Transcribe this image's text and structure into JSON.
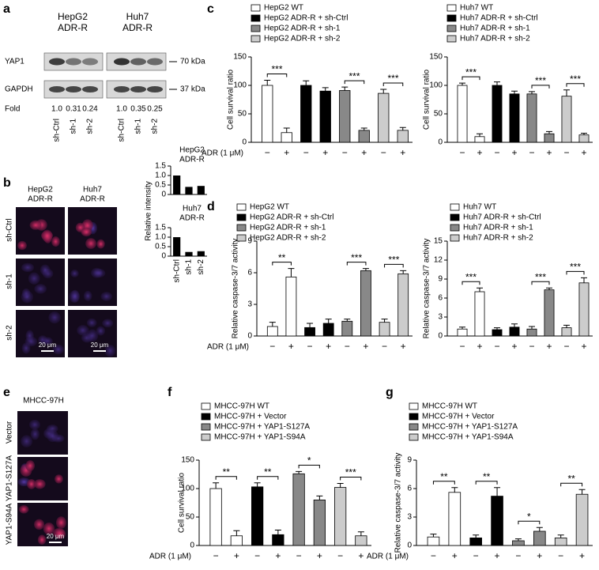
{
  "panel_labels": [
    "a",
    "b",
    "c",
    "d",
    "e",
    "f",
    "g"
  ],
  "panel_a": {
    "cell_lines": [
      [
        "HepG2",
        "ADR-R"
      ],
      [
        "Huh7",
        "ADR-R"
      ]
    ],
    "proteins": [
      "YAP1",
      "GAPDH"
    ],
    "markers": [
      "70 kDa",
      "37 kDa"
    ],
    "fold_label": "Fold",
    "fold": [
      "1.0",
      "0.31",
      "0.24",
      "1.0",
      "0.35",
      "0.25"
    ],
    "lanes": [
      "sh-Ctrl",
      "sh-1",
      "sh-2",
      "sh-Ctrl",
      "sh-1",
      "sh-2"
    ]
  },
  "panel_b": {
    "columns": [
      [
        "HepG2",
        "ADR-R"
      ],
      [
        "Huh7",
        "ADR-R"
      ]
    ],
    "rows": [
      "sh-Ctrl",
      "sh-1",
      "sh-2"
    ],
    "scale_bars": [
      "20 μm",
      "20 μm"
    ],
    "ylabel": "Relative intensity"
  },
  "panel_e": {
    "title": "MHCC-97H",
    "rows": [
      "Vector",
      "YAP1-S127A",
      "YAP1-S94A"
    ],
    "scale_bar": "20 μm"
  },
  "chart_data": [
    {
      "type": "bar",
      "title_lines": [
        "HepG2",
        "ADR-R"
      ],
      "categories": [
        null,
        null,
        null
      ],
      "values": [
        1.0,
        0.4,
        0.45
      ],
      "color": "#000000",
      "ylim": [
        0,
        1.5
      ],
      "yticks": [
        0,
        0.5,
        {
          "value": 1,
          "label": "1.0"
        },
        1.5
      ]
    },
    {
      "type": "bar",
      "title_lines": [
        "Huh7",
        "ADR-R"
      ],
      "categories": [
        "sh-Ctrl",
        "sh-1",
        "sh-2"
      ],
      "values": [
        1.0,
        0.22,
        0.26
      ],
      "color": "#000000",
      "ylim": [
        0,
        1.5
      ],
      "yticks": [
        0,
        0.5,
        {
          "value": 1,
          "label": "1.0"
        },
        1.5
      ]
    },
    {
      "type": "bar",
      "ylabel": "Cell survival ratio",
      "xlabel": "ADR (1 μM)",
      "categories": [
        "−",
        "+"
      ],
      "ylim": [
        0,
        150
      ],
      "yticks": [
        0,
        50,
        100,
        150
      ],
      "series": [
        {
          "name": "HepG2 WT",
          "color": "#ffffff",
          "values": [
            100,
            17
          ],
          "errors": [
            9,
            8
          ],
          "significance": "***"
        },
        {
          "name": "HepG2 ADR-R + sh-Ctrl",
          "color": "#000000",
          "values": [
            100,
            90
          ],
          "errors": [
            8,
            6
          ]
        },
        {
          "name": "HepG2 ADR-R + sh-1",
          "color": "#888888",
          "values": [
            91,
            21
          ],
          "errors": [
            6,
            4
          ],
          "significance": "***"
        },
        {
          "name": "HepG2 ADR-R + sh-2",
          "color": "#cccccc",
          "values": [
            86,
            21
          ],
          "errors": [
            7,
            5
          ],
          "significance": "***"
        }
      ]
    },
    {
      "type": "bar",
      "ylabel": "Cell survival ratio",
      "categories": [
        "−",
        "+"
      ],
      "ylim": [
        0,
        150
      ],
      "yticks": [
        0,
        50,
        100,
        150
      ],
      "series": [
        {
          "name": "Huh7 WT",
          "color": "#ffffff",
          "values": [
            100,
            10
          ],
          "errors": [
            4,
            5
          ],
          "significance": "***"
        },
        {
          "name": "Huh7 ADR-R + sh-Ctrl",
          "color": "#000000",
          "values": [
            100,
            85
          ],
          "errors": [
            6,
            5
          ]
        },
        {
          "name": "Huh7 ADR-R + sh-1",
          "color": "#888888",
          "values": [
            85,
            15
          ],
          "errors": [
            4,
            4
          ],
          "significance": "***"
        },
        {
          "name": "Huh7 ADR-R + sh-2",
          "color": "#cccccc",
          "values": [
            81,
            13
          ],
          "errors": [
            11,
            3
          ],
          "significance": "***"
        }
      ]
    },
    {
      "type": "bar",
      "ylabel": "Relative caspase-3/7 activity",
      "xlabel": "ADR (1 μM)",
      "categories": [
        "−",
        "+"
      ],
      "ylim": [
        0,
        9
      ],
      "yticks": [
        0,
        3,
        6,
        9
      ],
      "series": [
        {
          "name": "HepG2 WT",
          "color": "#ffffff",
          "values": [
            0.9,
            5.6
          ],
          "errors": [
            0.4,
            0.8
          ],
          "significance": "**"
        },
        {
          "name": "HepG2 ADR-R + sh-Ctrl",
          "color": "#000000",
          "values": [
            0.8,
            1.2
          ],
          "errors": [
            0.4,
            0.4
          ]
        },
        {
          "name": "HepG2 ADR-R + sh-1",
          "color": "#888888",
          "values": [
            1.4,
            6.2
          ],
          "errors": [
            0.2,
            0.2
          ],
          "significance": "***"
        },
        {
          "name": "HepG2 ADR-R + sh-2",
          "color": "#cccccc",
          "values": [
            1.3,
            5.9
          ],
          "errors": [
            0.3,
            0.3
          ],
          "significance": "***"
        }
      ]
    },
    {
      "type": "bar",
      "ylabel": "Relative caspase-3/7 activity",
      "categories": [
        "−",
        "+"
      ],
      "ylim": [
        0,
        15
      ],
      "yticks": [
        0,
        3,
        6,
        9,
        12,
        15
      ],
      "series": [
        {
          "name": "Huh7 WT",
          "color": "#ffffff",
          "values": [
            1.1,
            7.0
          ],
          "errors": [
            0.3,
            0.6
          ],
          "significance": "***"
        },
        {
          "name": "Huh7 ADR-R + sh-Ctrl",
          "color": "#000000",
          "values": [
            1.0,
            1.4
          ],
          "errors": [
            0.3,
            0.5
          ]
        },
        {
          "name": "Huh7 ADR-R + sh-1",
          "color": "#888888",
          "values": [
            1.1,
            7.3
          ],
          "errors": [
            0.4,
            0.3
          ],
          "significance": "***"
        },
        {
          "name": "Huh7 ADR-R + sh-2",
          "color": "#cccccc",
          "values": [
            1.3,
            8.4
          ],
          "errors": [
            0.4,
            0.8
          ],
          "significance": "***"
        }
      ]
    },
    {
      "type": "bar",
      "ylabel": "Cell survival ratio",
      "xlabel": "ADR (1 μM)",
      "categories": [
        "−",
        "+"
      ],
      "ylim": [
        0,
        150
      ],
      "yticks": [
        0,
        50,
        100,
        150
      ],
      "series": [
        {
          "name": "MHCC-97H WT",
          "color": "#ffffff",
          "values": [
            100,
            17
          ],
          "errors": [
            10,
            9
          ],
          "significance": "**"
        },
        {
          "name": "MHCC-97H + Vector",
          "color": "#000000",
          "values": [
            103,
            19
          ],
          "errors": [
            7,
            8
          ],
          "significance": "**"
        },
        {
          "name": "MHCC-97H + YAP1-S127A",
          "color": "#888888",
          "values": [
            126,
            80
          ],
          "errors": [
            4,
            7
          ],
          "significance": "*"
        },
        {
          "name": "MHCC-97H + YAP1-S94A",
          "color": "#cccccc",
          "values": [
            102,
            17
          ],
          "errors": [
            7,
            7
          ],
          "significance": "***"
        }
      ]
    },
    {
      "type": "bar",
      "ylabel": "Relative caspase-3/7 activity",
      "xlabel": "ADR (1 μM)",
      "categories": [
        "−",
        "+"
      ],
      "ylim": [
        0,
        9
      ],
      "yticks": [
        0,
        3,
        6,
        9
      ],
      "series": [
        {
          "name": "MHCC-97H WT",
          "color": "#ffffff",
          "values": [
            0.9,
            5.6
          ],
          "errors": [
            0.3,
            0.5
          ],
          "significance": "**"
        },
        {
          "name": "MHCC-97H + Vector",
          "color": "#000000",
          "values": [
            0.8,
            5.2
          ],
          "errors": [
            0.3,
            0.9
          ],
          "significance": "**"
        },
        {
          "name": "MHCC-97H + YAP1-S127A",
          "color": "#888888",
          "values": [
            0.5,
            1.5
          ],
          "errors": [
            0.2,
            0.4
          ],
          "significance": "*"
        },
        {
          "name": "MHCC-97H + YAP1-S94A",
          "color": "#cccccc",
          "values": [
            0.8,
            5.4
          ],
          "errors": [
            0.3,
            0.5
          ],
          "significance": "**"
        }
      ]
    }
  ]
}
